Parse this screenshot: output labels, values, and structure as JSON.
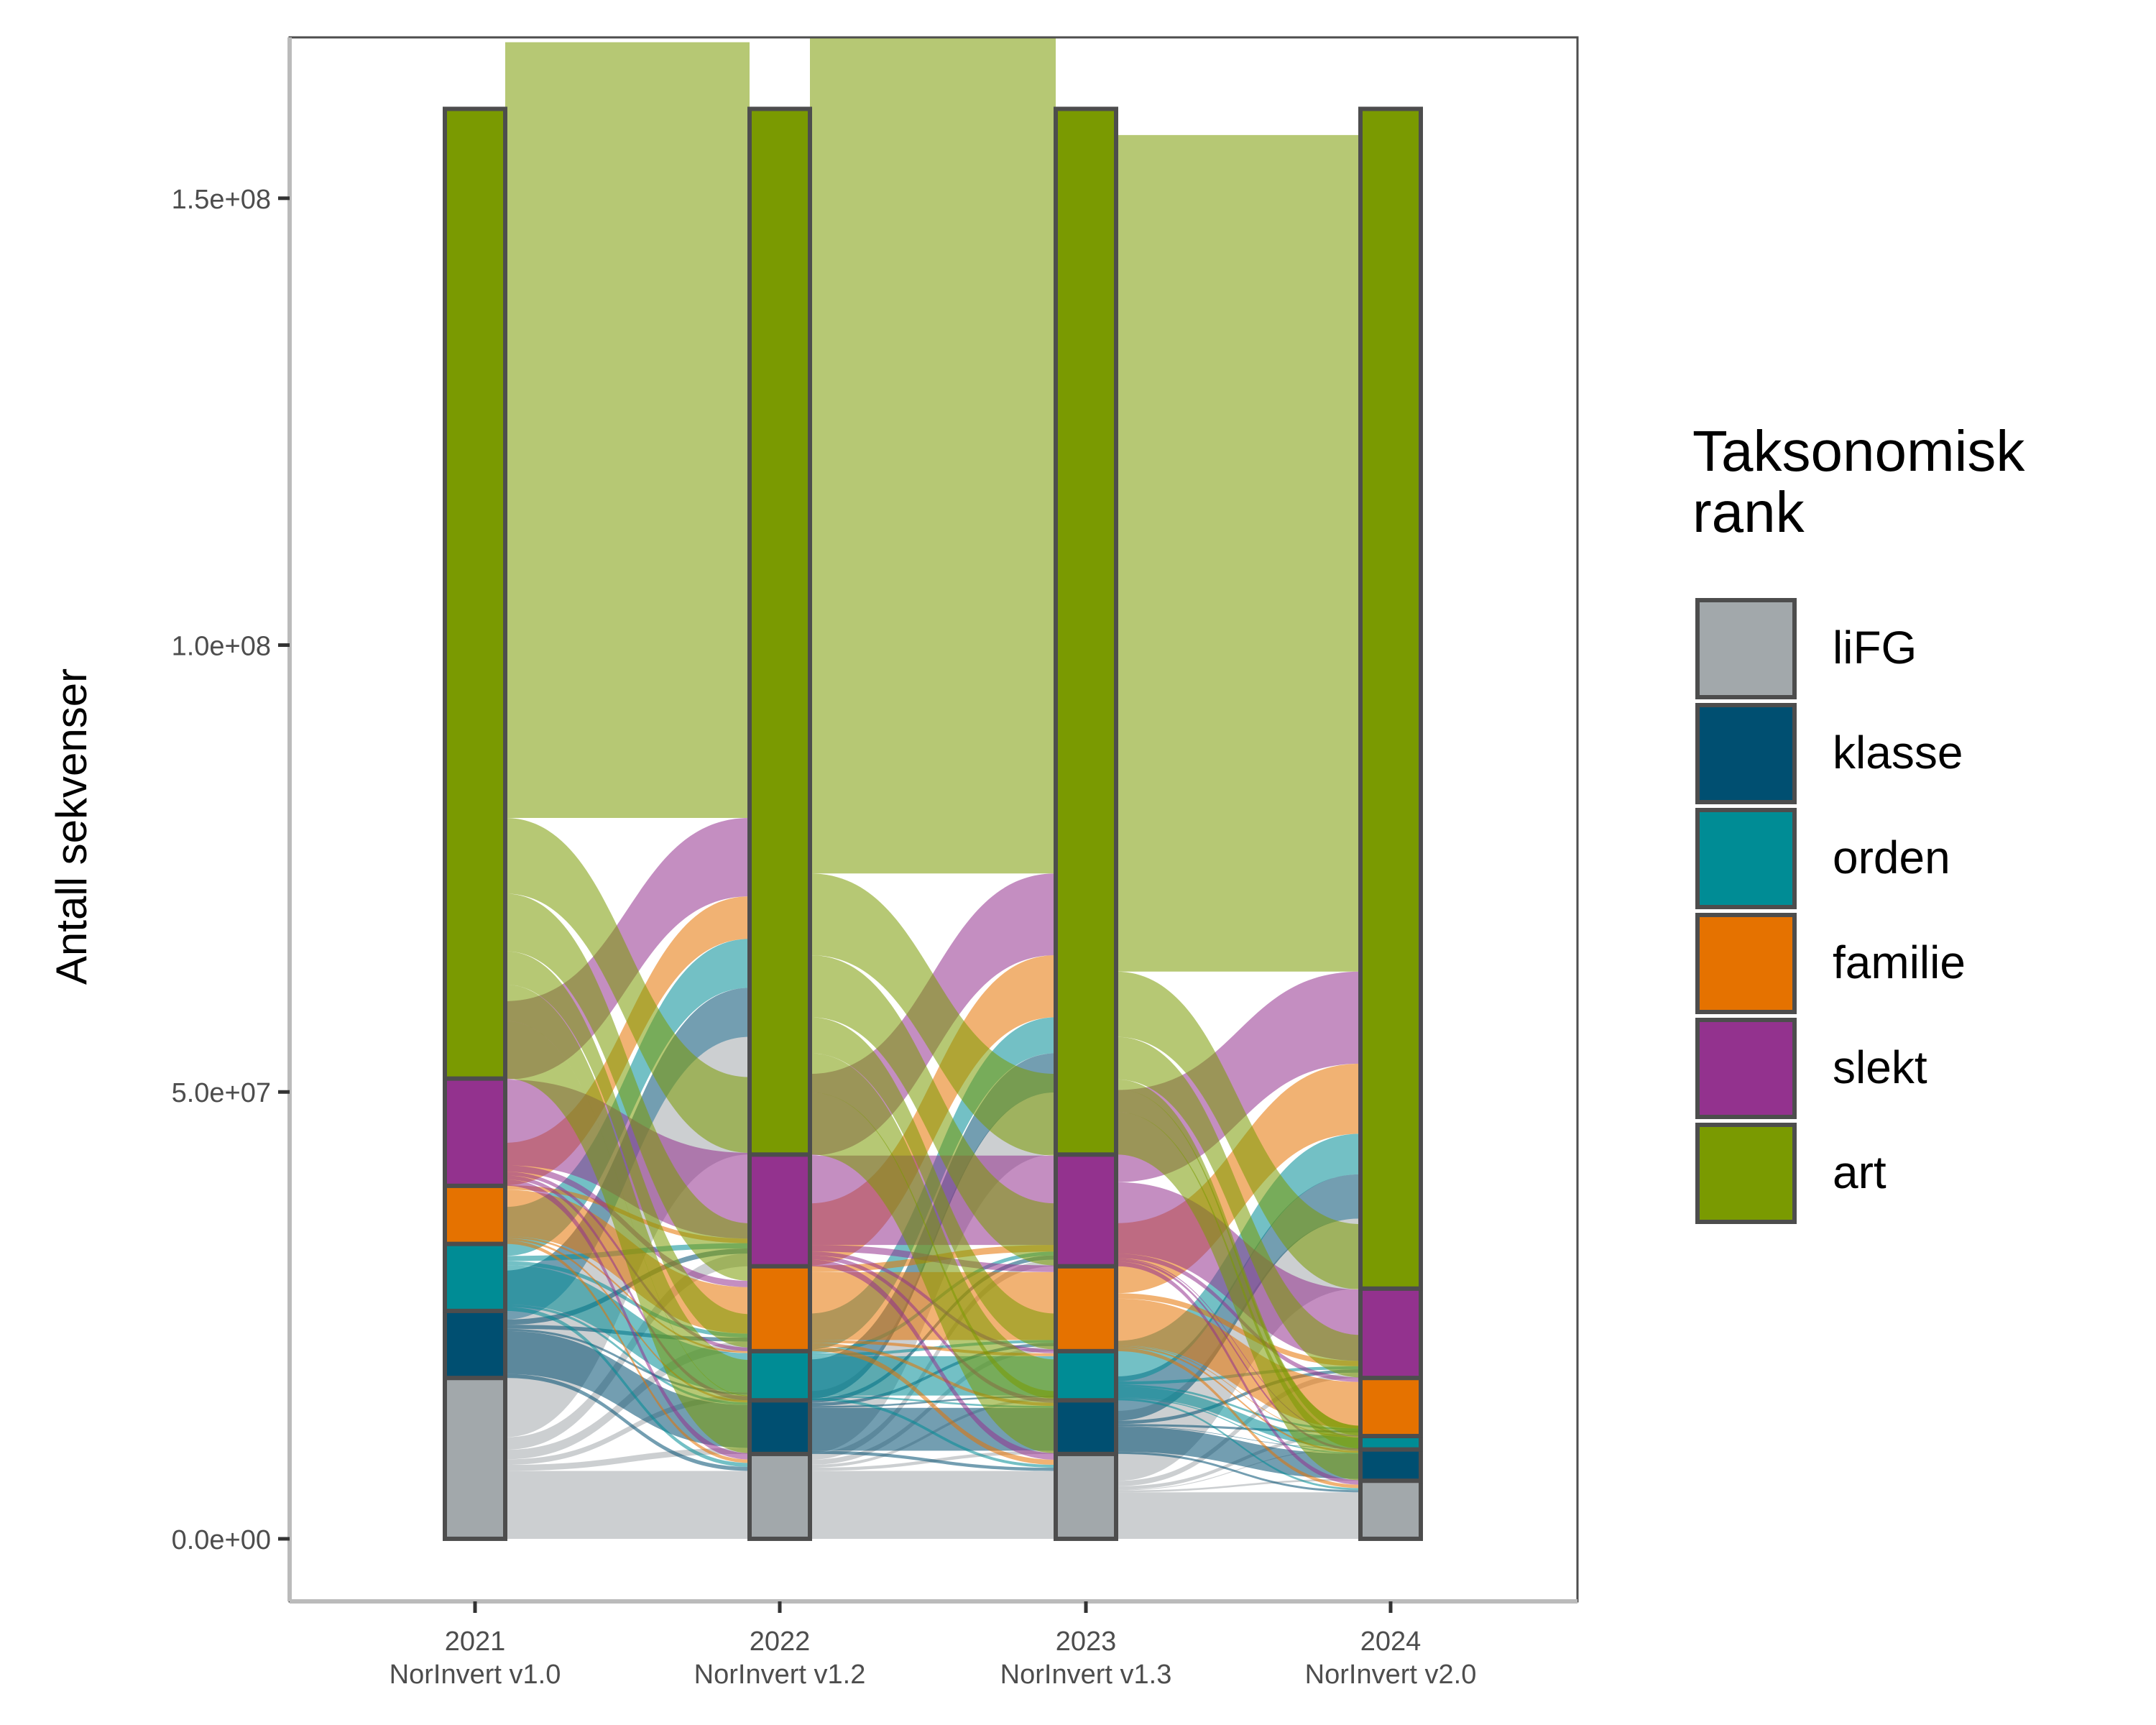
{
  "chart_data": {
    "type": "alluvial",
    "title": "",
    "ylabel": "Antall sekvenser",
    "xlabel": "",
    "ylim": [
      -7000000,
      168000000
    ],
    "yticks": [
      0,
      50000000,
      100000000,
      150000000
    ],
    "ytick_labels": [
      "0.0e+00",
      "5.0e+07",
      "1.0e+08",
      "1.5e+08"
    ],
    "categories": [
      {
        "year": "2021",
        "version": "NorInvert v1.0"
      },
      {
        "year": "2022",
        "version": "NorInvert v1.2"
      },
      {
        "year": "2023",
        "version": "NorInvert v1.3"
      },
      {
        "year": "2024",
        "version": "NorInvert v2.0"
      }
    ],
    "ranks": [
      "liFG",
      "klasse",
      "orden",
      "familie",
      "slekt",
      "art"
    ],
    "colors": {
      "liFG": "#a2a8ab",
      "klasse": "#004f71",
      "orden": "#008c95",
      "familie": "#e57200",
      "slekt": "#93328e",
      "art": "#7a9a01"
    },
    "stratum_values": {
      "2021": {
        "liFG": 18000000,
        "klasse": 7500000,
        "orden": 7500000,
        "familie": 6500000,
        "slekt": 12000000,
        "art": 108500000
      },
      "2022": {
        "liFG": 9500000,
        "klasse": 6000000,
        "orden": 5500000,
        "familie": 9500000,
        "slekt": 12500000,
        "art": 117000000
      },
      "2023": {
        "liFG": 9500000,
        "klasse": 6000000,
        "orden": 5500000,
        "familie": 9500000,
        "slekt": 12500000,
        "art": 117000000
      },
      "2024": {
        "liFG": 6500000,
        "klasse": 3500000,
        "orden": 1500000,
        "familie": 6500000,
        "slekt": 10000000,
        "art": 132000000
      }
    },
    "legend": {
      "title": "Taksonomisk rank",
      "title_lines": [
        "Taksonomisk",
        "rank"
      ],
      "position": "right",
      "entries": [
        "liFG",
        "klasse",
        "orden",
        "familie",
        "slekt",
        "art"
      ]
    },
    "grid": false
  }
}
